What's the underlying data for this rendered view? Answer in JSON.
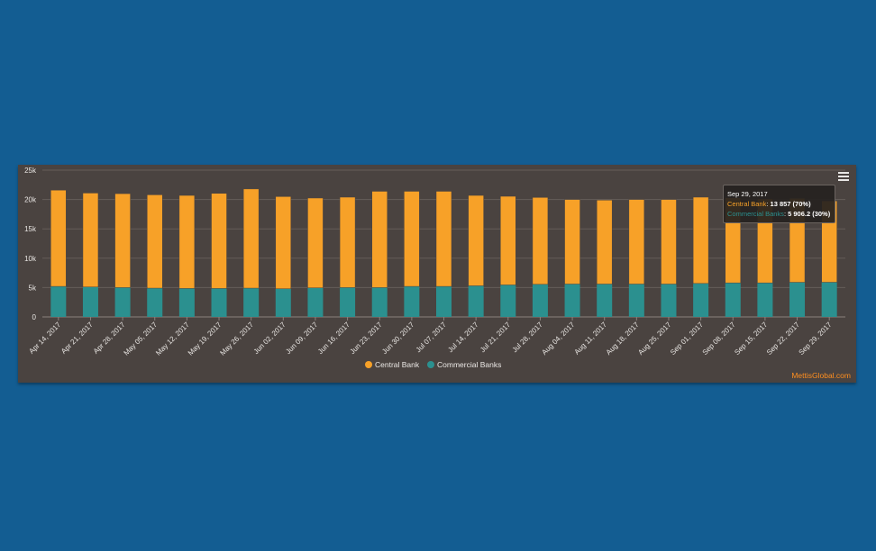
{
  "colors": {
    "background": "#135d92",
    "panel": "#4a4340",
    "central_bank": "#f7a128",
    "commercial_banks": "#2b908f",
    "gridline": "#655d59"
  },
  "menu": {
    "icon": "hamburger-menu-icon"
  },
  "tooltip": {
    "header": "Sep 29, 2017",
    "rows": [
      {
        "name": "Central Bank",
        "value": "13 857 (70%)"
      },
      {
        "name": "Commercial Banks",
        "value": "5 906.2 (30%)"
      }
    ]
  },
  "credit": "MettisGlobal.com",
  "chart_data": {
    "type": "bar",
    "stacked": true,
    "categories": [
      "Apr 14, 2017",
      "Apr 21, 2017",
      "Apr 28, 2017",
      "May 05, 2017",
      "May 12, 2017",
      "May 19, 2017",
      "May 26, 2017",
      "Jun 02, 2017",
      "Jun 09, 2017",
      "Jun 16, 2017",
      "Jun 23, 2017",
      "Jun 30, 2017",
      "Jul 07, 2017",
      "Jul 14, 2017",
      "Jul 21, 2017",
      "Jul 28, 2017",
      "Aug 04, 2017",
      "Aug 11, 2017",
      "Aug 18, 2017",
      "Aug 25, 2017",
      "Sep 01, 2017",
      "Sep 08, 2017",
      "Sep 15, 2017",
      "Sep 22, 2017",
      "Sep 29, 2017"
    ],
    "series": [
      {
        "name": "Commercial Banks",
        "values": [
          5200,
          5100,
          5000,
          4900,
          4850,
          4850,
          4900,
          4800,
          4950,
          5000,
          5000,
          5200,
          5200,
          5300,
          5450,
          5550,
          5600,
          5600,
          5600,
          5600,
          5700,
          5800,
          5800,
          5900,
          5906.2
        ]
      },
      {
        "name": "Central Bank",
        "values": [
          16400,
          16000,
          16000,
          15900,
          15850,
          16200,
          16900,
          15700,
          15300,
          15400,
          16400,
          16200,
          16200,
          15400,
          15100,
          14800,
          14400,
          14300,
          14400,
          14400,
          14700,
          14500,
          14300,
          14300,
          13857
        ]
      }
    ],
    "yticks": [
      0,
      5000,
      10000,
      15000,
      20000,
      25000
    ],
    "ytick_labels": [
      "0",
      "5k",
      "10k",
      "15k",
      "20k",
      "25k"
    ],
    "ylim": [
      0,
      25000
    ],
    "legend": [
      "Central Bank",
      "Commercial Banks"
    ],
    "legend_position": "bottom-center",
    "grid": true,
    "xlabel": "",
    "ylabel": ""
  }
}
